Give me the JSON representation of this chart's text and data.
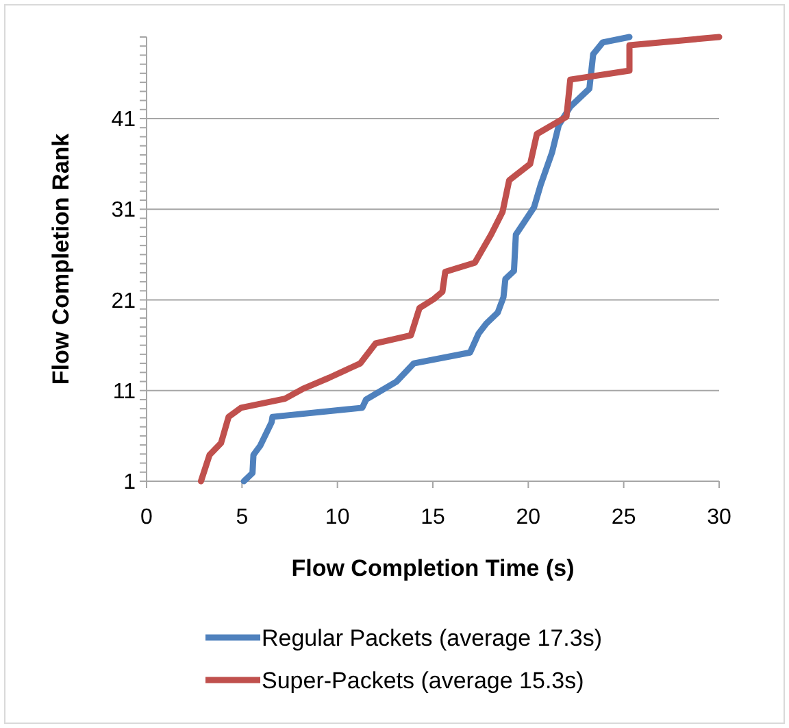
{
  "chart_data": {
    "type": "line",
    "xlabel": "Flow Completion Time (s)",
    "ylabel": "Flow Completion Rank",
    "xlim": [
      0,
      30
    ],
    "xticks": [
      0,
      5,
      10,
      15,
      20,
      25,
      30
    ],
    "ylim": [
      1,
      50
    ],
    "yticks": [
      1,
      {
        "value": 2,
        "label": null
      },
      {
        "value": 3,
        "label": null
      },
      {
        "value": 4,
        "label": null
      },
      {
        "value": 5,
        "label": null
      },
      {
        "value": 6,
        "label": null
      },
      {
        "value": 7,
        "label": null
      },
      {
        "value": 8,
        "label": null
      },
      {
        "value": 9,
        "label": null
      },
      {
        "value": 10,
        "label": null
      },
      11,
      {
        "value": 12,
        "label": null
      },
      {
        "value": 13,
        "label": null
      },
      {
        "value": 14,
        "label": null
      },
      {
        "value": 15,
        "label": null
      },
      {
        "value": 16,
        "label": null
      },
      {
        "value": 17,
        "label": null
      },
      {
        "value": 18,
        "label": null
      },
      {
        "value": 19,
        "label": null
      },
      {
        "value": 20,
        "label": null
      },
      21,
      {
        "value": 22,
        "label": null
      },
      {
        "value": 23,
        "label": null
      },
      {
        "value": 24,
        "label": null
      },
      {
        "value": 25,
        "label": null
      },
      {
        "value": 26,
        "label": null
      },
      {
        "value": 27,
        "label": null
      },
      {
        "value": 28,
        "label": null
      },
      {
        "value": 29,
        "label": null
      },
      {
        "value": 30,
        "label": null
      },
      31,
      {
        "value": 32,
        "label": null
      },
      {
        "value": 33,
        "label": null
      },
      {
        "value": 34,
        "label": null
      },
      {
        "value": 35,
        "label": null
      },
      {
        "value": 36,
        "label": null
      },
      {
        "value": 37,
        "label": null
      },
      {
        "value": 38,
        "label": null
      },
      {
        "value": 39,
        "label": null
      },
      {
        "value": 40,
        "label": null
      },
      41,
      {
        "value": 42,
        "label": null
      },
      {
        "value": 43,
        "label": null
      },
      {
        "value": 44,
        "label": null
      },
      {
        "value": 45,
        "label": null
      },
      {
        "value": 46,
        "label": null
      },
      {
        "value": 47,
        "label": null
      },
      {
        "value": 48,
        "label": null
      },
      {
        "value": 49,
        "label": null
      },
      {
        "value": 50,
        "label": null
      }
    ],
    "grid": "y",
    "legend": "bottom",
    "marker": "none",
    "line_style": "solid",
    "series": [
      {
        "name": "Regular Packets (average 17.3s)",
        "color": "#4f81bd",
        "x": [
          5.1,
          5.55,
          5.6,
          5.95,
          6.55,
          6.6,
          11.3,
          11.5,
          13.1,
          14.0,
          16.95,
          17.4,
          17.8,
          18.4,
          18.7,
          18.8,
          19.25,
          19.35,
          20.3,
          20.65,
          21.25,
          21.6,
          22.2,
          23.2,
          23.4,
          23.9,
          25.3
        ],
        "values": [
          1,
          1.9,
          3.9,
          4.9,
          7.5,
          8.1,
          9.1,
          10,
          12,
          14,
          15.2,
          17.3,
          18.4,
          19.6,
          21.3,
          23.3,
          24.2,
          28.2,
          31.2,
          33.7,
          37.3,
          40.3,
          42.3,
          44.3,
          48.1,
          49.4,
          50
        ]
      },
      {
        "name": "Super-Packets (average 15.3s)",
        "color": "#c0504d",
        "x": [
          2.85,
          3.3,
          3.9,
          4.3,
          4.95,
          7.25,
          8.2,
          9.55,
          11.2,
          12.0,
          13.85,
          14.3,
          15.05,
          15.5,
          15.65,
          17.2,
          18.05,
          18.65,
          19.0,
          20.1,
          20.45,
          22.0,
          22.2,
          25.3,
          25.3,
          30.0
        ],
        "values": [
          1,
          3.9,
          5.2,
          8.1,
          9.1,
          10.1,
          11.2,
          12.4,
          14,
          16.2,
          17.1,
          20.1,
          21.1,
          21.9,
          24.1,
          25.1,
          28.2,
          30.7,
          34.2,
          36,
          39.3,
          41.2,
          45.3,
          46.3,
          49.1,
          50
        ]
      }
    ]
  }
}
